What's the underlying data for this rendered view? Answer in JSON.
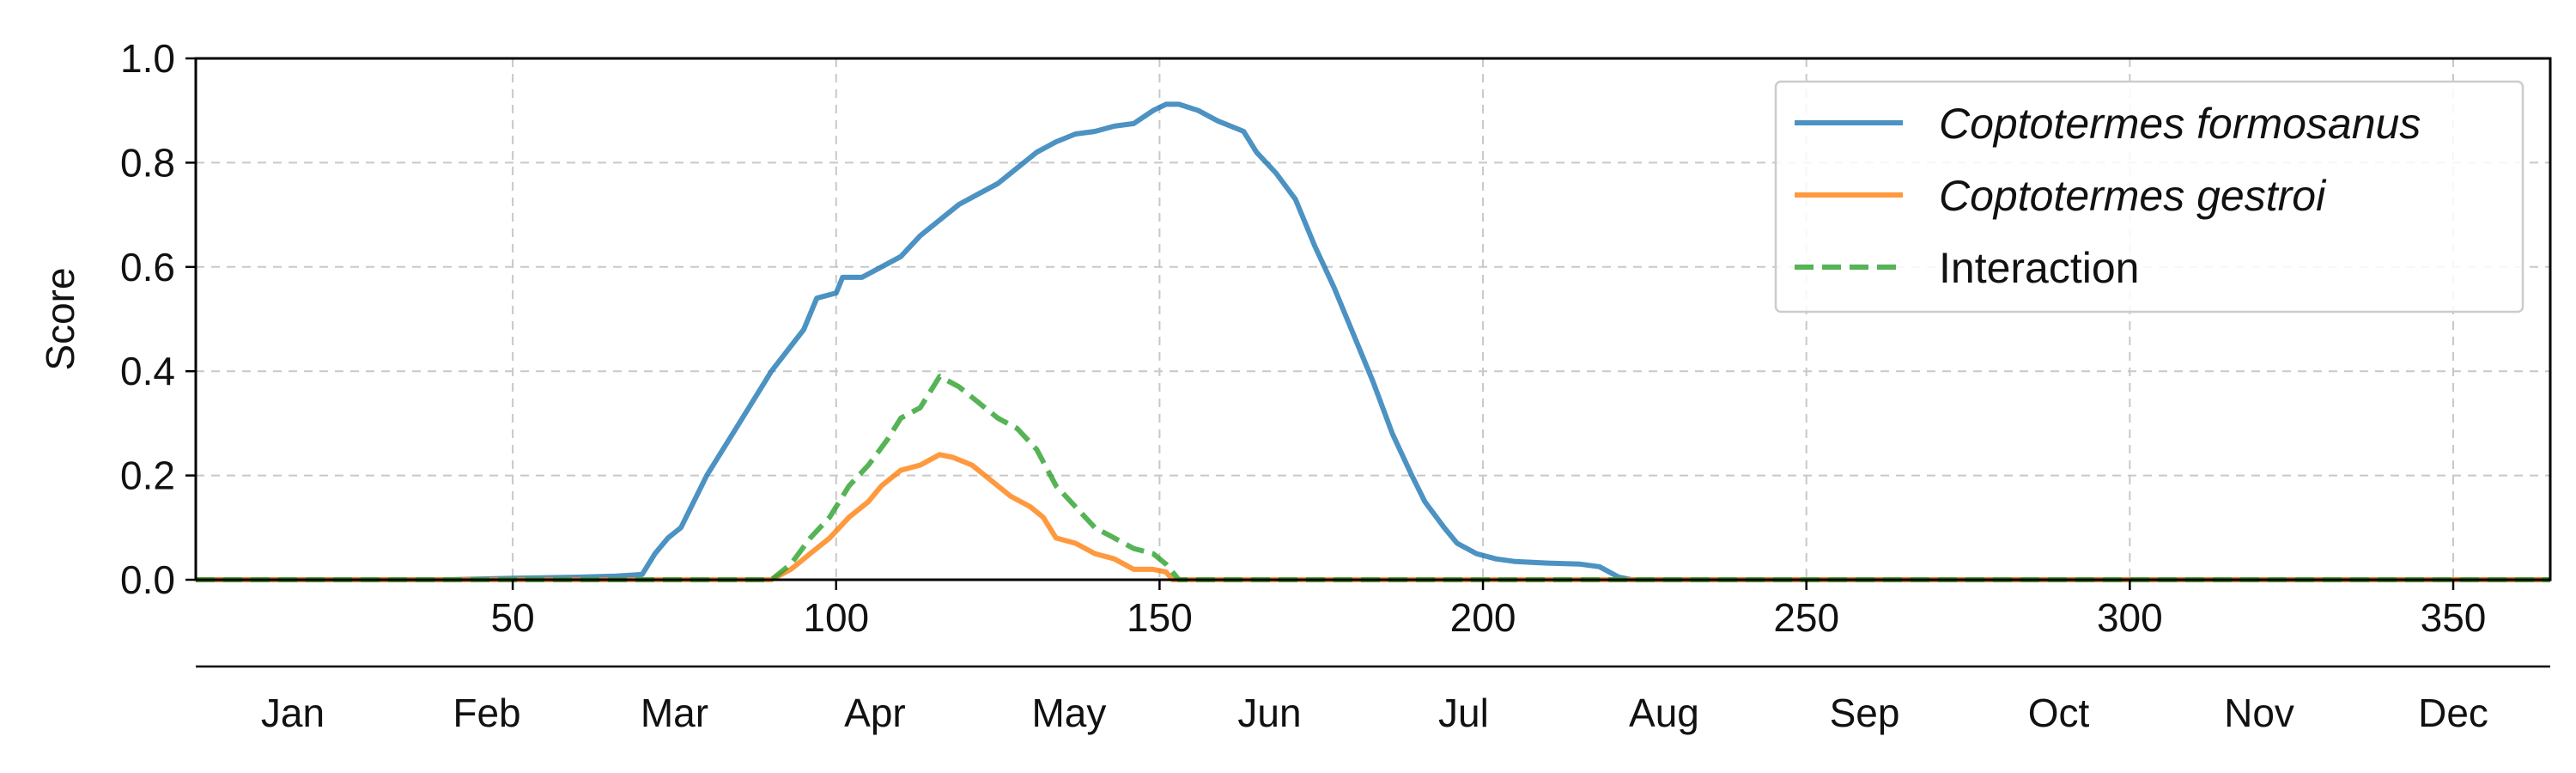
{
  "chart_data": {
    "type": "line",
    "title": "",
    "xlabel": "",
    "ylabel": "Score",
    "xlim": [
      1,
      365
    ],
    "ylim": [
      0,
      1.0
    ],
    "grid": true,
    "legend_position": "top-right",
    "x_ticks": [
      50,
      100,
      150,
      200,
      250,
      300,
      350
    ],
    "y_ticks": [
      0.0,
      0.2,
      0.4,
      0.6,
      0.8,
      1.0
    ],
    "y_tick_labels": [
      "0.0",
      "0.2",
      "0.4",
      "0.6",
      "0.8",
      "1.0"
    ],
    "months": [
      {
        "label": "Jan",
        "day": 16
      },
      {
        "label": "Feb",
        "day": 46
      },
      {
        "label": "Mar",
        "day": 75
      },
      {
        "label": "Apr",
        "day": 106
      },
      {
        "label": "May",
        "day": 136
      },
      {
        "label": "Jun",
        "day": 167
      },
      {
        "label": "Jul",
        "day": 197
      },
      {
        "label": "Aug",
        "day": 228
      },
      {
        "label": "Sep",
        "day": 259
      },
      {
        "label": "Oct",
        "day": 289
      },
      {
        "label": "Nov",
        "day": 320
      },
      {
        "label": "Dec",
        "day": 350
      }
    ],
    "series": [
      {
        "name": "Coptotermes formosanus",
        "color": "#1f77b4",
        "dash": "solid",
        "italic": true,
        "points": [
          [
            1,
            0
          ],
          [
            40,
            0
          ],
          [
            50,
            0.003
          ],
          [
            60,
            0.005
          ],
          [
            66,
            0.007
          ],
          [
            70,
            0.01
          ],
          [
            72,
            0.05
          ],
          [
            74,
            0.08
          ],
          [
            76,
            0.1
          ],
          [
            80,
            0.2
          ],
          [
            85,
            0.3
          ],
          [
            90,
            0.4
          ],
          [
            95,
            0.48
          ],
          [
            97,
            0.54
          ],
          [
            100,
            0.55
          ],
          [
            101,
            0.58
          ],
          [
            104,
            0.58
          ],
          [
            107,
            0.6
          ],
          [
            110,
            0.62
          ],
          [
            113,
            0.66
          ],
          [
            116,
            0.69
          ],
          [
            119,
            0.72
          ],
          [
            122,
            0.74
          ],
          [
            125,
            0.76
          ],
          [
            128,
            0.79
          ],
          [
            131,
            0.82
          ],
          [
            134,
            0.84
          ],
          [
            137,
            0.855
          ],
          [
            140,
            0.86
          ],
          [
            143,
            0.87
          ],
          [
            146,
            0.875
          ],
          [
            149,
            0.9
          ],
          [
            151,
            0.912
          ],
          [
            153,
            0.912
          ],
          [
            156,
            0.9
          ],
          [
            159,
            0.88
          ],
          [
            162,
            0.865
          ],
          [
            163,
            0.86
          ],
          [
            165,
            0.82
          ],
          [
            168,
            0.78
          ],
          [
            171,
            0.73
          ],
          [
            174,
            0.64
          ],
          [
            177,
            0.56
          ],
          [
            180,
            0.47
          ],
          [
            183,
            0.38
          ],
          [
            186,
            0.28
          ],
          [
            189,
            0.2
          ],
          [
            191,
            0.15
          ],
          [
            194,
            0.1
          ],
          [
            196,
            0.07
          ],
          [
            199,
            0.05
          ],
          [
            202,
            0.04
          ],
          [
            205,
            0.035
          ],
          [
            210,
            0.032
          ],
          [
            215,
            0.03
          ],
          [
            218,
            0.025
          ],
          [
            221,
            0.005
          ],
          [
            223,
            0
          ],
          [
            365,
            0
          ]
        ]
      },
      {
        "name": "Coptotermes gestroi",
        "color": "#ff7f0e",
        "dash": "solid",
        "italic": true,
        "points": [
          [
            1,
            0
          ],
          [
            90,
            0
          ],
          [
            93,
            0.02
          ],
          [
            96,
            0.05
          ],
          [
            99,
            0.08
          ],
          [
            102,
            0.12
          ],
          [
            105,
            0.15
          ],
          [
            107,
            0.18
          ],
          [
            110,
            0.21
          ],
          [
            113,
            0.22
          ],
          [
            116,
            0.24
          ],
          [
            118,
            0.235
          ],
          [
            121,
            0.22
          ],
          [
            124,
            0.19
          ],
          [
            127,
            0.16
          ],
          [
            130,
            0.14
          ],
          [
            132,
            0.12
          ],
          [
            134,
            0.08
          ],
          [
            137,
            0.07
          ],
          [
            140,
            0.05
          ],
          [
            143,
            0.04
          ],
          [
            146,
            0.02
          ],
          [
            149,
            0.02
          ],
          [
            151,
            0.015
          ],
          [
            152,
            0
          ],
          [
            365,
            0
          ]
        ]
      },
      {
        "name": "Interaction",
        "color": "#2ca02c",
        "dash": "dashed",
        "italic": false,
        "points": [
          [
            1,
            0
          ],
          [
            90,
            0
          ],
          [
            93,
            0.03
          ],
          [
            96,
            0.08
          ],
          [
            99,
            0.12
          ],
          [
            102,
            0.18
          ],
          [
            105,
            0.22
          ],
          [
            108,
            0.27
          ],
          [
            110,
            0.31
          ],
          [
            113,
            0.33
          ],
          [
            116,
            0.39
          ],
          [
            119,
            0.37
          ],
          [
            122,
            0.34
          ],
          [
            125,
            0.31
          ],
          [
            128,
            0.29
          ],
          [
            131,
            0.25
          ],
          [
            134,
            0.18
          ],
          [
            137,
            0.14
          ],
          [
            140,
            0.1
          ],
          [
            143,
            0.08
          ],
          [
            146,
            0.06
          ],
          [
            149,
            0.05
          ],
          [
            151,
            0.03
          ],
          [
            153,
            0
          ],
          [
            365,
            0
          ]
        ]
      }
    ]
  }
}
